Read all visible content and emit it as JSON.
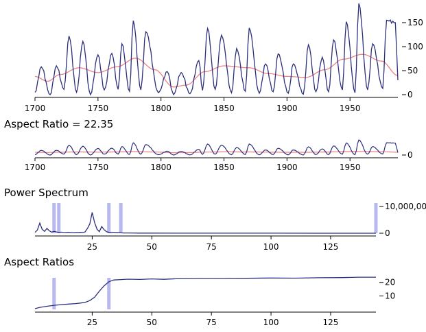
{
  "sections": {
    "aspect_ratio_title": "Aspect Ratio = 22.35",
    "power_spectrum_title": "Power Spectrum",
    "aspect_ratios_title": "Aspect Ratios"
  },
  "colors": {
    "series": "#2b2f7a",
    "trend": "#f08080",
    "highlight": "#b8b8f0",
    "axis": "#000000"
  },
  "chart_data": [
    {
      "type": "line",
      "id": "sunspots",
      "xlim": [
        1700,
        1988
      ],
      "ylim": [
        0,
        190
      ],
      "x_ticks": [
        "1700",
        "1750",
        "1800",
        "1850",
        "1900",
        "1950"
      ],
      "y_ticks": [
        "0",
        "50",
        "100",
        "150"
      ],
      "series": [
        {
          "role": "values",
          "peaks": [
            [
              1705,
              58
            ],
            [
              1717,
              60
            ],
            [
              1727,
              122
            ],
            [
              1738,
              111
            ],
            [
              1750,
              83
            ],
            [
              1761,
              86
            ],
            [
              1769,
              106
            ],
            [
              1778,
              154
            ],
            [
              1788,
              131
            ],
            [
              1805,
              48
            ],
            [
              1816,
              46
            ],
            [
              1830,
              71
            ],
            [
              1837,
              138
            ],
            [
              1848,
              124
            ],
            [
              1860,
              96
            ],
            [
              1870,
              139
            ],
            [
              1883,
              64
            ],
            [
              1893,
              85
            ],
            [
              1905,
              64
            ],
            [
              1917,
              104
            ],
            [
              1928,
              78
            ],
            [
              1937,
              114
            ],
            [
              1947,
              152
            ],
            [
              1957,
              190
            ],
            [
              1968,
              106
            ],
            [
              1979,
              155
            ],
            [
              1986,
              150
            ]
          ],
          "minima": [
            [
              1700,
              5
            ],
            [
              1712,
              0
            ],
            [
              1723,
              11
            ],
            [
              1733,
              5
            ],
            [
              1744,
              0
            ],
            [
              1755,
              10
            ],
            [
              1766,
              11
            ],
            [
              1775,
              7
            ],
            [
              1784,
              10
            ],
            [
              1798,
              4
            ],
            [
              1810,
              0
            ],
            [
              1823,
              2
            ],
            [
              1833,
              9
            ],
            [
              1843,
              11
            ],
            [
              1856,
              4
            ],
            [
              1867,
              7
            ],
            [
              1878,
              3
            ],
            [
              1889,
              6
            ],
            [
              1901,
              3
            ],
            [
              1913,
              1
            ],
            [
              1923,
              6
            ],
            [
              1933,
              6
            ],
            [
              1944,
              10
            ],
            [
              1954,
              4
            ],
            [
              1964,
              10
            ],
            [
              1976,
              13
            ],
            [
              1988,
              30
            ]
          ]
        },
        {
          "role": "trend",
          "points": [
            [
              1700,
              38
            ],
            [
              1710,
              28
            ],
            [
              1720,
              42
            ],
            [
              1735,
              56
            ],
            [
              1750,
              46
            ],
            [
              1765,
              58
            ],
            [
              1780,
              76
            ],
            [
              1795,
              52
            ],
            [
              1810,
              16
            ],
            [
              1820,
              20
            ],
            [
              1835,
              48
            ],
            [
              1850,
              60
            ],
            [
              1870,
              56
            ],
            [
              1885,
              44
            ],
            [
              1900,
              38
            ],
            [
              1915,
              36
            ],
            [
              1930,
              52
            ],
            [
              1945,
              74
            ],
            [
              1960,
              84
            ],
            [
              1975,
              70
            ],
            [
              1988,
              40
            ]
          ]
        }
      ]
    },
    {
      "type": "line",
      "id": "banked",
      "xlim": [
        1700,
        1988
      ],
      "x_ticks": [
        "1700",
        "1750",
        "1800",
        "1850",
        "1900",
        "1950"
      ],
      "y_ticks": [
        "0"
      ]
    },
    {
      "type": "line",
      "id": "power-spectrum",
      "xlim": [
        1,
        144
      ],
      "ylim": [
        0,
        20000000
      ],
      "x_ticks": [
        "25",
        "50",
        "75",
        "100",
        "125"
      ],
      "y_ticks": [
        "0",
        "10,000,000"
      ],
      "points": [
        [
          1,
          300000
        ],
        [
          2,
          1200000
        ],
        [
          3,
          3800000
        ],
        [
          4,
          1500000
        ],
        [
          5,
          700000
        ],
        [
          6,
          1800000
        ],
        [
          7,
          900000
        ],
        [
          8,
          400000
        ],
        [
          9,
          700000
        ],
        [
          10,
          500000
        ],
        [
          11,
          300000
        ],
        [
          12,
          400000
        ],
        [
          13,
          250000
        ],
        [
          14,
          200000
        ],
        [
          15,
          300000
        ],
        [
          16,
          200000
        ],
        [
          17,
          150000
        ],
        [
          18,
          200000
        ],
        [
          19,
          200000
        ],
        [
          20,
          300000
        ],
        [
          21,
          250000
        ],
        [
          22,
          500000
        ],
        [
          23,
          1800000
        ],
        [
          24,
          3500000
        ],
        [
          25,
          7800000
        ],
        [
          26,
          4000000
        ],
        [
          27,
          1500000
        ],
        [
          28,
          600000
        ],
        [
          29,
          2500000
        ],
        [
          30,
          1300000
        ],
        [
          31,
          600000
        ],
        [
          32,
          300000
        ],
        [
          33,
          200000
        ],
        [
          34,
          350000
        ],
        [
          35,
          200000
        ],
        [
          36,
          250000
        ],
        [
          37,
          150000
        ],
        [
          38,
          100000
        ],
        [
          40,
          100000
        ],
        [
          45,
          50000
        ],
        [
          50,
          40000
        ],
        [
          60,
          30000
        ],
        [
          80,
          20000
        ],
        [
          100,
          15000
        ],
        [
          120,
          10000
        ],
        [
          144,
          8000
        ]
      ],
      "highlights": [
        9,
        11,
        32,
        37,
        144
      ]
    },
    {
      "type": "line",
      "id": "aspect-ratios",
      "xlim": [
        1,
        144
      ],
      "ylim": [
        0,
        27
      ],
      "x_ticks": [
        "25",
        "50",
        "75",
        "100",
        "125"
      ],
      "y_ticks": [
        "10",
        "20"
      ],
      "points": [
        [
          1,
          0.5
        ],
        [
          3,
          1.5
        ],
        [
          6,
          2.3
        ],
        [
          9,
          3.0
        ],
        [
          12,
          3.5
        ],
        [
          15,
          3.9
        ],
        [
          18,
          4.3
        ],
        [
          20,
          4.7
        ],
        [
          22,
          5.2
        ],
        [
          24,
          6.5
        ],
        [
          26,
          9.0
        ],
        [
          28,
          13.5
        ],
        [
          30,
          17.5
        ],
        [
          32,
          20.5
        ],
        [
          34,
          21.8
        ],
        [
          37,
          22.1
        ],
        [
          40,
          22.4
        ],
        [
          45,
          22.2
        ],
        [
          50,
          22.6
        ],
        [
          55,
          22.3
        ],
        [
          60,
          22.7
        ],
        [
          70,
          22.9
        ],
        [
          80,
          23.0
        ],
        [
          90,
          23.1
        ],
        [
          100,
          23.3
        ],
        [
          110,
          23.2
        ],
        [
          120,
          23.5
        ],
        [
          130,
          23.6
        ],
        [
          137,
          23.9
        ],
        [
          144,
          23.9
        ]
      ],
      "highlights": [
        9,
        32
      ]
    }
  ]
}
